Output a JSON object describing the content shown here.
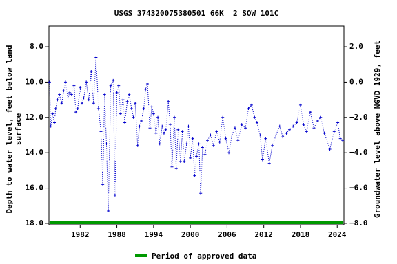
{
  "chart_data": {
    "type": "line",
    "title": "USGS 374320075380501 66K  2 SOW 101C",
    "ylabel": [
      "Depth to water level, feet below land",
      "surface"
    ],
    "y2label": "Groundwater level above NGVD 1929, feet",
    "x": [
      1977.0,
      1977.2,
      1977.5,
      1977.8,
      1978.0,
      1978.3,
      1978.6,
      1979.0,
      1979.3,
      1979.6,
      1980.0,
      1980.3,
      1980.6,
      1981.0,
      1981.3,
      1981.6,
      1982.0,
      1982.3,
      1982.6,
      1983.0,
      1983.4,
      1983.8,
      1984.2,
      1984.6,
      1985.0,
      1985.4,
      1985.7,
      1986.0,
      1986.3,
      1986.6,
      1987.0,
      1987.4,
      1987.7,
      1988.0,
      1988.3,
      1988.6,
      1989.0,
      1989.3,
      1989.7,
      1990.0,
      1990.4,
      1990.7,
      1991.0,
      1991.4,
      1991.7,
      1992.0,
      1992.4,
      1992.7,
      1993.0,
      1993.4,
      1993.7,
      1994.0,
      1994.4,
      1994.7,
      1995.0,
      1995.4,
      1995.7,
      1996.0,
      1996.4,
      1996.7,
      1997.0,
      1997.4,
      1997.7,
      1998.0,
      1998.4,
      1998.7,
      1999.0,
      1999.4,
      1999.7,
      2000.0,
      2000.4,
      2000.7,
      2001.0,
      2001.4,
      2001.7,
      2002.0,
      2002.4,
      2002.8,
      2003.3,
      2003.8,
      2004.3,
      2004.8,
      2005.3,
      2005.8,
      2006.3,
      2006.8,
      2007.3,
      2007.8,
      2008.4,
      2009.0,
      2009.5,
      2010.0,
      2010.5,
      2010.9,
      2011.4,
      2011.8,
      2012.3,
      2012.9,
      2013.4,
      2014.0,
      2014.6,
      2015.1,
      2015.7,
      2016.2,
      2016.8,
      2017.4,
      2018.0,
      2018.5,
      2019.0,
      2019.6,
      2020.2,
      2020.8,
      2021.3,
      2021.9,
      2022.8,
      2023.5,
      2024.1,
      2024.5,
      2024.9
    ],
    "series": [
      {
        "name": "Depth to water level",
        "color": "#0000cc",
        "values": [
          10.0,
          12.5,
          11.8,
          12.3,
          11.5,
          11.0,
          10.7,
          11.2,
          10.5,
          10.0,
          10.9,
          10.6,
          10.7,
          10.2,
          11.7,
          11.5,
          10.3,
          11.2,
          10.9,
          10.0,
          11.0,
          9.4,
          11.2,
          8.6,
          11.5,
          12.8,
          15.8,
          10.7,
          13.5,
          17.3,
          10.2,
          9.9,
          16.4,
          10.6,
          10.2,
          11.8,
          11.0,
          12.3,
          11.1,
          10.7,
          11.5,
          12.0,
          11.2,
          13.6,
          12.5,
          12.2,
          11.5,
          10.4,
          10.1,
          12.6,
          11.4,
          11.8,
          12.9,
          12.0,
          13.5,
          12.5,
          12.9,
          12.7,
          11.1,
          12.4,
          14.8,
          12.0,
          14.9,
          12.7,
          14.5,
          12.8,
          14.5,
          13.5,
          12.5,
          14.3,
          13.2,
          15.3,
          14.2,
          13.5,
          16.3,
          13.7,
          14.1,
          13.3,
          13.0,
          13.6,
          12.8,
          13.4,
          12.0,
          13.2,
          14.0,
          13.0,
          12.6,
          13.3,
          12.4,
          12.6,
          11.5,
          11.3,
          12.0,
          12.3,
          13.0,
          14.4,
          13.2,
          14.6,
          13.6,
          13.0,
          12.5,
          13.1,
          12.9,
          12.7,
          12.5,
          12.3,
          11.3,
          12.4,
          12.8,
          11.7,
          12.6,
          12.2,
          12.0,
          12.9,
          13.8,
          12.8,
          12.3,
          13.2,
          13.3
        ]
      }
    ],
    "xlim": [
      1976.9,
      2025.1
    ],
    "xticks": [
      1982,
      1988,
      1994,
      2000,
      2006,
      2012,
      2018,
      2024
    ],
    "ylim": [
      18.08,
      6.83
    ],
    "yticks": [
      {
        "value": 8,
        "label": "8.0"
      },
      {
        "value": 10,
        "label": "10.0"
      },
      {
        "value": 12,
        "label": "12.0"
      },
      {
        "value": 14,
        "label": "14.0"
      },
      {
        "value": 16,
        "label": "16.0"
      },
      {
        "value": 18,
        "label": "18.0"
      }
    ],
    "y2lim": [
      -8.08,
      3.17
    ],
    "y2ticks": [
      {
        "value": 2,
        "label": "2.0"
      },
      {
        "value": 0,
        "label": "0.0"
      },
      {
        "value": -2,
        "label": "−2.0"
      },
      {
        "value": -4,
        "label": "−4.0"
      },
      {
        "value": -6,
        "label": "−6.0"
      },
      {
        "value": -8,
        "label": "−8.0"
      }
    ],
    "approved_period": {
      "name": "Period of approved data",
      "color": "#009900",
      "x": [
        1977.0,
        2025.0
      ]
    }
  }
}
